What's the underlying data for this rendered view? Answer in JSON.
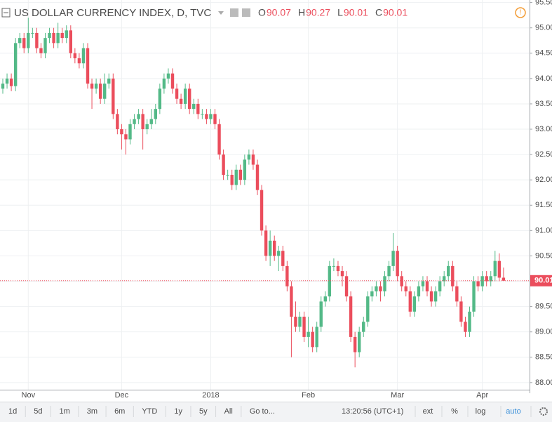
{
  "chart_data": {
    "type": "candlestick",
    "title": "US DOLLAR CURRENCY INDEX, D, TVC",
    "ohlc_labels": [
      "O",
      "H",
      "L",
      "C"
    ],
    "categories": [
      null,
      null,
      null,
      null,
      null,
      null,
      "Nov",
      null,
      null,
      null,
      null,
      null,
      null,
      null,
      null,
      null,
      null,
      null,
      null,
      null,
      null,
      null,
      null,
      null,
      null,
      null,
      null,
      null,
      "Dec",
      null,
      null,
      null,
      null,
      null,
      null,
      null,
      null,
      null,
      null,
      null,
      null,
      null,
      null,
      null,
      null,
      null,
      null,
      null,
      null,
      "2018",
      null,
      null,
      null,
      null,
      null,
      null,
      null,
      null,
      null,
      null,
      null,
      null,
      null,
      null,
      null,
      null,
      null,
      null,
      null,
      null,
      null,
      null,
      "Feb",
      null,
      null,
      null,
      null,
      null,
      null,
      null,
      null,
      null,
      null,
      null,
      null,
      null,
      null,
      null,
      null,
      null,
      null,
      null,
      null,
      "Mar",
      null,
      null,
      null,
      null,
      null,
      null,
      null,
      null,
      null,
      null,
      null,
      null,
      null,
      null,
      null,
      null,
      null,
      null,
      null,
      "Apr",
      null,
      null,
      null,
      null,
      null
    ],
    "open": [
      93.8,
      93.9,
      94.0,
      93.85,
      94.7,
      94.8,
      94.6,
      94.9,
      94.9,
      94.6,
      94.5,
      94.8,
      94.9,
      94.7,
      94.9,
      94.8,
      94.95,
      94.5,
      94.4,
      94.3,
      94.6,
      93.9,
      93.8,
      93.9,
      93.6,
      93.9,
      94.0,
      93.3,
      93.0,
      92.9,
      92.8,
      93.1,
      93.2,
      93.3,
      93.0,
      93.1,
      93.2,
      93.4,
      93.8,
      94.0,
      94.1,
      93.8,
      93.6,
      93.5,
      93.8,
      93.4,
      93.5,
      93.3,
      93.3,
      93.2,
      93.3,
      93.1,
      92.5,
      92.1,
      92.1,
      91.9,
      92.2,
      92.0,
      92.4,
      92.5,
      92.3,
      91.8,
      91.0,
      90.5,
      90.8,
      90.5,
      90.6,
      90.3,
      89.9,
      89.3,
      89.1,
      89.3,
      88.9,
      89.0,
      88.7,
      89.1,
      89.6,
      89.7,
      90.3,
      90.3,
      90.2,
      90.1,
      89.7,
      88.9,
      88.6,
      89.0,
      89.2,
      89.7,
      89.8,
      89.9,
      89.8,
      90.1,
      90.3,
      90.6,
      90.1,
      89.9,
      89.8,
      89.4,
      89.7,
      89.9,
      90.0,
      89.8,
      89.6,
      89.8,
      90.0,
      90.1,
      90.3,
      89.9,
      89.6,
      89.2,
      89.0,
      89.4,
      90.0,
      89.9,
      90.1,
      90.0,
      90.1,
      90.4,
      90.07
    ],
    "high": [
      94.0,
      94.1,
      94.1,
      94.8,
      94.9,
      94.9,
      95.2,
      95.0,
      95.0,
      94.7,
      94.9,
      95.0,
      95.0,
      95.1,
      95.0,
      95.05,
      95.05,
      94.6,
      94.5,
      94.7,
      94.7,
      94.0,
      94.0,
      94.0,
      94.1,
      94.1,
      94.1,
      93.4,
      93.1,
      93.0,
      93.2,
      93.3,
      93.4,
      93.4,
      93.2,
      93.4,
      93.5,
      93.9,
      94.1,
      94.2,
      94.2,
      93.9,
      93.7,
      93.9,
      93.9,
      93.6,
      93.6,
      93.4,
      93.4,
      93.4,
      93.4,
      93.2,
      92.6,
      92.2,
      92.2,
      92.3,
      92.3,
      92.5,
      92.6,
      92.6,
      92.4,
      91.9,
      91.1,
      91.0,
      90.9,
      90.7,
      90.7,
      90.4,
      90.0,
      89.6,
      89.4,
      89.4,
      89.3,
      89.1,
      89.2,
      89.7,
      89.8,
      90.4,
      90.45,
      90.4,
      90.3,
      90.2,
      89.8,
      89.0,
      89.1,
      89.3,
      89.8,
      89.9,
      90.0,
      90.0,
      90.2,
      90.4,
      90.95,
      90.7,
      90.2,
      90.0,
      89.9,
      89.8,
      90.0,
      90.1,
      90.1,
      89.9,
      89.9,
      90.1,
      90.2,
      90.4,
      90.4,
      90.0,
      89.7,
      89.3,
      89.5,
      90.1,
      90.1,
      90.2,
      90.2,
      90.2,
      90.6,
      90.55,
      90.27
    ],
    "low": [
      93.7,
      93.8,
      93.75,
      93.75,
      94.6,
      94.5,
      94.5,
      94.8,
      94.5,
      94.4,
      94.4,
      94.7,
      94.6,
      94.6,
      94.7,
      94.7,
      94.4,
      94.3,
      94.2,
      94.2,
      93.8,
      93.4,
      93.7,
      93.5,
      93.5,
      93.8,
      93.2,
      92.9,
      92.6,
      92.5,
      92.7,
      93.0,
      93.1,
      92.6,
      92.9,
      93.0,
      93.1,
      93.3,
      93.7,
      93.9,
      93.7,
      93.5,
      93.4,
      93.4,
      93.3,
      93.3,
      93.2,
      93.2,
      93.1,
      93.1,
      93.0,
      92.4,
      92.0,
      92.0,
      91.8,
      91.8,
      91.9,
      91.9,
      92.3,
      92.2,
      91.7,
      90.9,
      90.4,
      90.3,
      90.4,
      90.2,
      90.2,
      89.8,
      88.5,
      89.0,
      89.0,
      88.8,
      88.7,
      88.6,
      88.6,
      89.0,
      89.5,
      89.6,
      90.2,
      90.1,
      89.9,
      89.6,
      88.8,
      88.3,
      88.5,
      88.9,
      89.1,
      89.6,
      89.7,
      89.6,
      89.7,
      90.0,
      90.2,
      90.0,
      89.8,
      89.7,
      89.3,
      89.3,
      89.6,
      89.8,
      89.7,
      89.5,
      89.5,
      89.7,
      89.9,
      90.0,
      89.8,
      89.5,
      89.1,
      88.9,
      88.9,
      89.3,
      89.8,
      89.8,
      89.9,
      89.9,
      90.0,
      90.0,
      90.01
    ],
    "close": [
      93.9,
      94.0,
      93.85,
      94.7,
      94.8,
      94.6,
      94.9,
      94.9,
      94.6,
      94.5,
      94.8,
      94.9,
      94.7,
      94.9,
      94.8,
      94.95,
      94.5,
      94.4,
      94.3,
      94.6,
      93.9,
      93.8,
      93.9,
      93.6,
      93.9,
      94.0,
      93.3,
      93.0,
      92.9,
      92.8,
      93.1,
      93.2,
      93.3,
      93.0,
      93.1,
      93.2,
      93.4,
      93.8,
      94.0,
      94.1,
      93.8,
      93.6,
      93.5,
      93.8,
      93.4,
      93.5,
      93.3,
      93.3,
      93.2,
      93.3,
      93.1,
      92.5,
      92.1,
      92.1,
      91.9,
      92.2,
      92.0,
      92.4,
      92.5,
      92.3,
      91.8,
      91.0,
      90.5,
      90.8,
      90.5,
      90.6,
      90.3,
      89.9,
      89.3,
      89.1,
      89.3,
      88.9,
      89.0,
      88.7,
      89.1,
      89.6,
      89.7,
      90.3,
      90.3,
      90.2,
      90.1,
      89.7,
      88.9,
      88.6,
      89.0,
      89.2,
      89.7,
      89.8,
      89.9,
      89.8,
      90.1,
      90.3,
      90.6,
      90.1,
      89.9,
      89.8,
      89.4,
      89.7,
      89.9,
      90.0,
      89.8,
      89.6,
      89.8,
      90.0,
      90.1,
      90.3,
      89.9,
      89.6,
      89.2,
      89.0,
      89.4,
      90.0,
      89.9,
      90.1,
      90.0,
      90.1,
      90.4,
      90.07,
      90.01
    ],
    "up_color": "#53b987",
    "down_color": "#eb4d5c",
    "ylim": [
      87.79,
      95.55
    ],
    "yticks": [
      {
        "value": 88,
        "label": "88.00"
      },
      {
        "value": 88.5,
        "label": "88.50"
      },
      {
        "value": 89,
        "label": "89.00"
      },
      {
        "value": 89.5,
        "label": "89.50"
      },
      {
        "value": 90,
        "label": "90.00"
      },
      {
        "value": 90.5,
        "label": "90.50"
      },
      {
        "value": 91,
        "label": "91.00"
      },
      {
        "value": 91.5,
        "label": "91.50"
      },
      {
        "value": 92,
        "label": "92.00"
      },
      {
        "value": 92.5,
        "label": "92.50"
      },
      {
        "value": 93,
        "label": "93.00"
      },
      {
        "value": 93.5,
        "label": "93.50"
      },
      {
        "value": 94,
        "label": "94.00"
      },
      {
        "value": 94.5,
        "label": "94.50"
      },
      {
        "value": 95,
        "label": "95.00"
      },
      {
        "value": 95.5,
        "label": "95.50"
      }
    ],
    "grid": true
  },
  "toolbar": {
    "ranges": [
      "1d",
      "5d",
      "1m",
      "3m",
      "6m",
      "YTD",
      "1y",
      "5y",
      "All"
    ],
    "goto": "Go to...",
    "time": "13:20:56 (UTC+1)",
    "options": [
      "ext",
      "%",
      "log",
      "auto"
    ]
  }
}
